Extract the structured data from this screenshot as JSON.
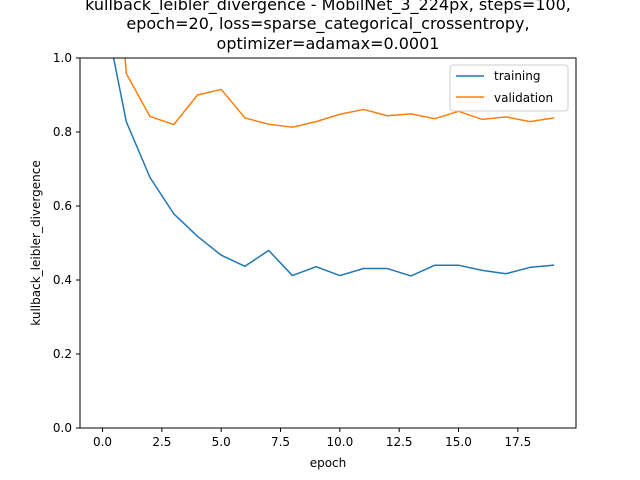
{
  "chart_data": {
    "type": "line",
    "title_lines": [
      "kullback_leibler_divergence - MobilNet_3_224px, steps=100,",
      "epoch=20, loss=sparse_categorical_crossentropy,",
      "optimizer=adamax=0.0001"
    ],
    "xlabel": "epoch",
    "ylabel": "kullback_leibler_divergence",
    "xlim": [
      -0.95,
      19.95
    ],
    "ylim": [
      0.0,
      1.0
    ],
    "x_ticks": [
      0.0,
      2.5,
      5.0,
      7.5,
      10.0,
      12.5,
      15.0,
      17.5
    ],
    "x_tick_labels": [
      "0.0",
      "2.5",
      "5.0",
      "7.5",
      "10.0",
      "12.5",
      "15.0",
      "17.5"
    ],
    "y_ticks": [
      0.0,
      0.2,
      0.4,
      0.6,
      0.8,
      1.0
    ],
    "y_tick_labels": [
      "0.0",
      "0.2",
      "0.4",
      "0.6",
      "0.8",
      "1.0"
    ],
    "grid": false,
    "legend_position": "top-right",
    "x": [
      0,
      1,
      2,
      3,
      4,
      5,
      6,
      7,
      8,
      9,
      10,
      11,
      12,
      13,
      14,
      15,
      16,
      17,
      18,
      19
    ],
    "series": [
      {
        "name": "training",
        "color": "#1f77b4",
        "values": [
          1.15,
          0.828,
          0.677,
          0.579,
          0.518,
          0.467,
          0.437,
          0.48,
          0.412,
          0.436,
          0.412,
          0.431,
          0.431,
          0.411,
          0.44,
          0.44,
          0.426,
          0.417,
          0.434,
          0.44
        ]
      },
      {
        "name": "validation",
        "color": "#ff7f0e",
        "values": [
          1.8,
          0.958,
          0.842,
          0.82,
          0.9,
          0.915,
          0.838,
          0.821,
          0.813,
          0.828,
          0.848,
          0.861,
          0.844,
          0.849,
          0.836,
          0.856,
          0.834,
          0.841,
          0.828,
          0.838
        ]
      }
    ]
  }
}
